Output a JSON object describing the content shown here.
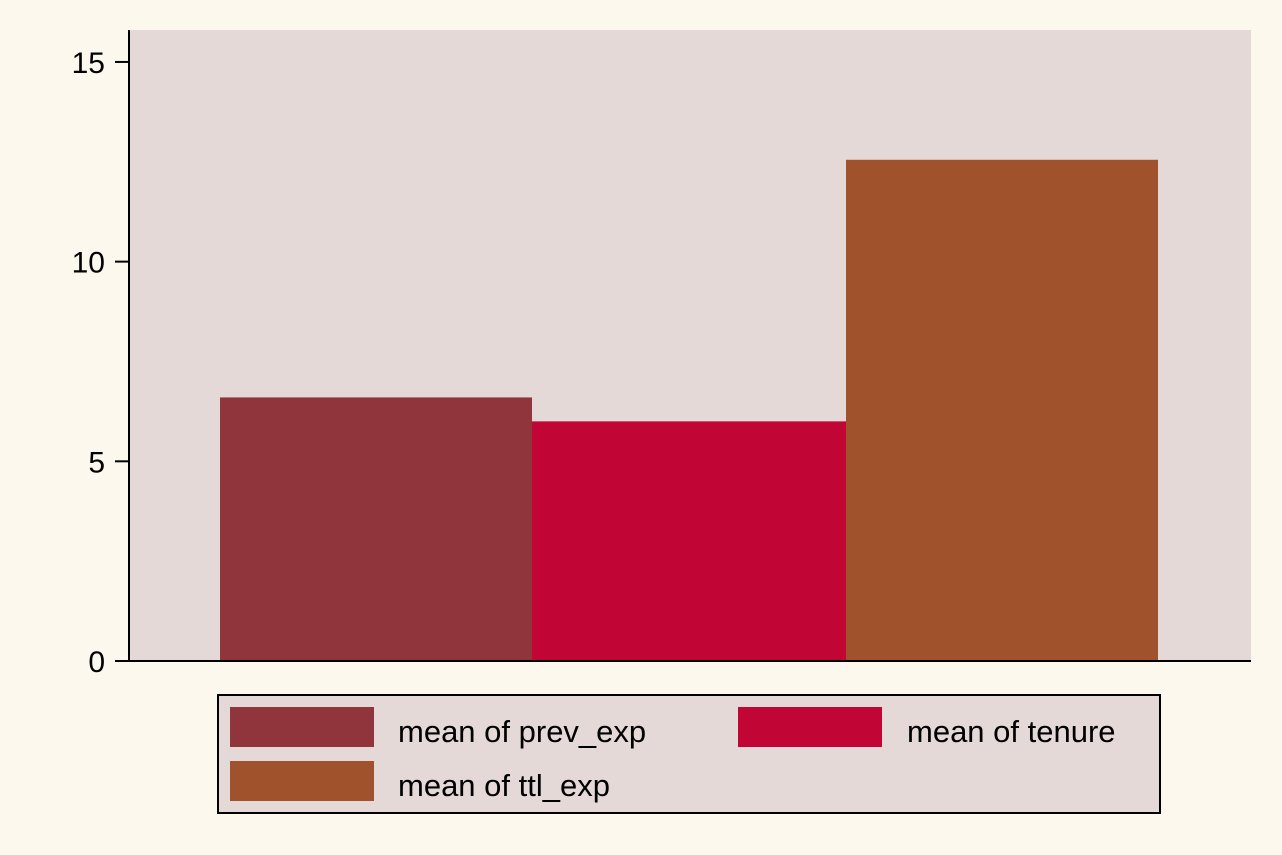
{
  "chart_data": {
    "type": "bar",
    "title": "",
    "xlabel": "",
    "ylabel": "",
    "ylim": [
      0,
      15.8
    ],
    "yticks": [
      0,
      5,
      10,
      15
    ],
    "grid": false,
    "legend_position": "bottom",
    "series": [
      {
        "name": "mean of prev_exp",
        "values": [
          6.6
        ],
        "color": "#90353b"
      },
      {
        "name": "mean of tenure",
        "values": [
          6.0
        ],
        "color": "#c10534"
      },
      {
        "name": "mean of ttl_exp",
        "values": [
          12.55
        ],
        "color": "#a0522d"
      }
    ]
  },
  "colors": {
    "page_background": "#fdf8ee",
    "plot_background": "#e5d9d8",
    "axis": "#000000"
  }
}
